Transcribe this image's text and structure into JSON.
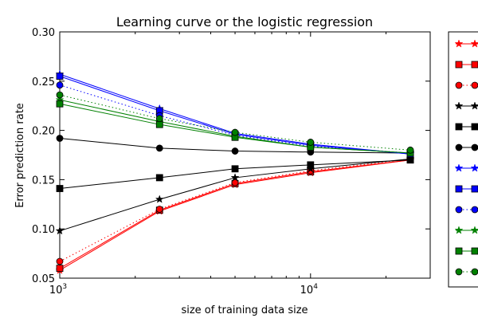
{
  "chart_data": {
    "type": "line",
    "title": "Learning curve or the logistic regression",
    "xlabel": "size of training data size",
    "ylabel": "Error prediction rate",
    "x_scale": "log",
    "xlim": [
      1000,
      30000
    ],
    "ylim": [
      0.05,
      0.3
    ],
    "x_ticks": [
      {
        "value": 1000,
        "base": "10",
        "exp": "3"
      },
      {
        "value": 10000,
        "base": "10",
        "exp": "4"
      }
    ],
    "y_ticks": [
      {
        "value": 0.05,
        "label": "0.05"
      },
      {
        "value": 0.1,
        "label": "0.10"
      },
      {
        "value": 0.15,
        "label": "0.15"
      },
      {
        "value": 0.2,
        "label": "0.20"
      },
      {
        "value": 0.25,
        "label": "0.25"
      },
      {
        "value": 0.3,
        "label": "0.30"
      }
    ],
    "grid": false,
    "legend_position": "outside right",
    "x": [
      1000,
      2500,
      5000,
      10000,
      25000
    ],
    "series": [
      {
        "color": "#ff0000",
        "marker": "star",
        "linestyle": "solid",
        "values": [
          0.058,
          0.118,
          0.145,
          0.157,
          0.17
        ]
      },
      {
        "color": "#ff0000",
        "marker": "square",
        "linestyle": "solid",
        "values": [
          0.06,
          0.119,
          0.146,
          0.158,
          0.17
        ]
      },
      {
        "color": "#ff0000",
        "marker": "circle",
        "linestyle": "dotted",
        "values": [
          0.067,
          0.12,
          0.147,
          0.159,
          0.171
        ]
      },
      {
        "color": "#000000",
        "marker": "star",
        "linestyle": "solid",
        "values": [
          0.098,
          0.13,
          0.152,
          0.161,
          0.171
        ]
      },
      {
        "color": "#000000",
        "marker": "square",
        "linestyle": "solid",
        "values": [
          0.141,
          0.152,
          0.161,
          0.165,
          0.17
        ]
      },
      {
        "color": "#000000",
        "marker": "circle",
        "linestyle": "solid",
        "values": [
          0.192,
          0.182,
          0.179,
          0.178,
          0.177
        ]
      },
      {
        "color": "#0000ff",
        "marker": "star",
        "linestyle": "solid",
        "values": [
          0.257,
          0.222,
          0.197,
          0.186,
          0.176
        ]
      },
      {
        "color": "#0000ff",
        "marker": "square",
        "linestyle": "solid",
        "values": [
          0.255,
          0.22,
          0.196,
          0.185,
          0.176
        ]
      },
      {
        "color": "#0000ff",
        "marker": "circle",
        "linestyle": "dotted",
        "values": [
          0.246,
          0.215,
          0.195,
          0.184,
          0.177
        ]
      },
      {
        "color": "#008000",
        "marker": "star",
        "linestyle": "solid",
        "values": [
          0.231,
          0.209,
          0.194,
          0.183,
          0.177
        ]
      },
      {
        "color": "#008000",
        "marker": "square",
        "linestyle": "solid",
        "values": [
          0.227,
          0.206,
          0.193,
          0.183,
          0.177
        ]
      },
      {
        "color": "#008000",
        "marker": "circle",
        "linestyle": "dotted",
        "values": [
          0.236,
          0.212,
          0.198,
          0.188,
          0.18
        ]
      }
    ]
  }
}
